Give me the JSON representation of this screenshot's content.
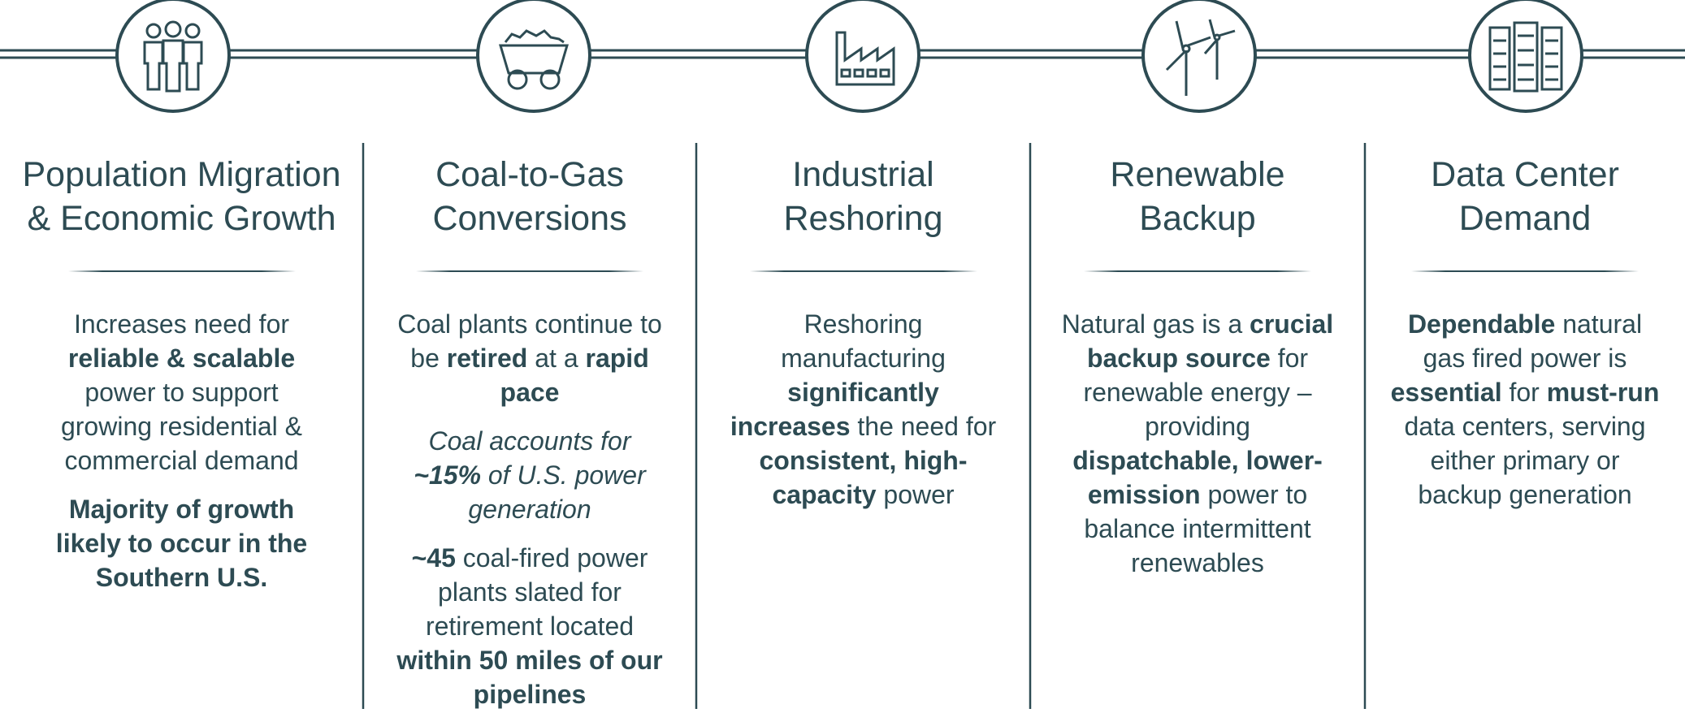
{
  "columns": [
    {
      "title": [
        "Population Migration",
        "& Economic Growth"
      ],
      "paragraphs": [
        [
          {
            "text": "Increases need for "
          },
          {
            "text": "reliable & scalable",
            "bold": true
          },
          {
            "text": " power to support growing residential & commercial demand"
          }
        ],
        [
          {
            "text": "Majority of growth likely to occur in the Southern U.S.",
            "bold": true
          }
        ]
      ]
    },
    {
      "title": [
        "Coal-to-Gas",
        "Conversions"
      ],
      "paragraphs": [
        [
          {
            "text": "Coal plants continue to be "
          },
          {
            "text": "retired",
            "bold": true
          },
          {
            "text": " at a "
          },
          {
            "text": "rapid pace",
            "bold": true
          }
        ],
        [
          {
            "text": "Coal accounts for ",
            "italic": true
          },
          {
            "text": "~15%",
            "bold": true,
            "italic": true
          },
          {
            "text": " of U.S. power generation",
            "italic": true
          }
        ],
        [
          {
            "text": "~45",
            "bold": true
          },
          {
            "text": " coal-fired power plants slated for retirement located "
          },
          {
            "text": "within 50 miles of our pipelines",
            "bold": true
          }
        ]
      ]
    },
    {
      "title": [
        "Industrial",
        "Reshoring"
      ],
      "paragraphs": [
        [
          {
            "text": "Reshoring manufacturing "
          },
          {
            "text": "significantly increases",
            "bold": true
          },
          {
            "text": " the need for "
          },
          {
            "text": "consistent, high-capacity",
            "bold": true
          },
          {
            "text": " power"
          }
        ]
      ]
    },
    {
      "title": [
        "Renewable",
        "Backup"
      ],
      "paragraphs": [
        [
          {
            "text": "Natural gas is a "
          },
          {
            "text": "crucial backup source",
            "bold": true
          },
          {
            "text": " for renewable energy – providing "
          },
          {
            "text": "dispatchable, lower-emission",
            "bold": true
          },
          {
            "text": " power to balance intermittent renewables"
          }
        ]
      ]
    },
    {
      "title": [
        "Data Center",
        "Demand"
      ],
      "paragraphs": [
        [
          {
            "text": "Dependable",
            "bold": true
          },
          {
            "text": " natural gas fired power is "
          },
          {
            "text": "essential",
            "bold": true
          },
          {
            "text": " for "
          },
          {
            "text": "must-run",
            "bold": true
          },
          {
            "text": " data centers, serving either primary or backup generation"
          }
        ]
      ]
    }
  ]
}
